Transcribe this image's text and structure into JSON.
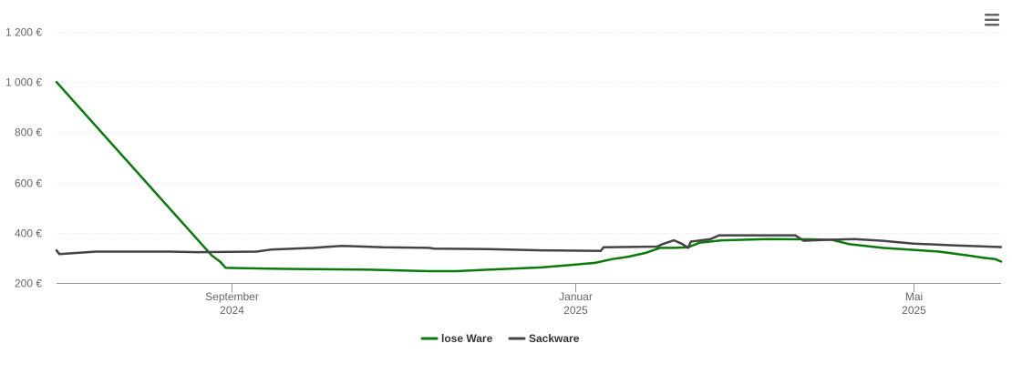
{
  "menu": {
    "icon": "hamburger-menu-icon"
  },
  "chart_data": {
    "type": "line",
    "title": "",
    "xlabel": "",
    "ylabel": "",
    "ylim": [
      200,
      1200
    ],
    "yticks": [
      200,
      400,
      600,
      800,
      1000,
      1200
    ],
    "ytick_labels": [
      "200 €",
      "400 €",
      "600 €",
      "800 €",
      "1 000 €",
      "1 200 €"
    ],
    "x_range": [
      "2024-07-01",
      "2025-06-01"
    ],
    "xticks": [
      {
        "date": "2024-09-01",
        "label_month": "September",
        "label_year": "2024"
      },
      {
        "date": "2025-01-01",
        "label_month": "Januar",
        "label_year": "2025"
      },
      {
        "date": "2025-05-01",
        "label_month": "Mai",
        "label_year": "2025"
      }
    ],
    "grid": true,
    "legend": "bottom-center",
    "series": [
      {
        "name": "lose Ware",
        "color": "#0a7a0a",
        "points": [
          [
            "2024-07-01",
            1000
          ],
          [
            "2024-08-25",
            310
          ],
          [
            "2024-08-28",
            285
          ],
          [
            "2024-08-30",
            260
          ],
          [
            "2024-09-20",
            256
          ],
          [
            "2024-10-20",
            253
          ],
          [
            "2024-11-10",
            247
          ],
          [
            "2024-11-20",
            247
          ],
          [
            "2024-12-01",
            253
          ],
          [
            "2024-12-20",
            262
          ],
          [
            "2025-01-08",
            280
          ],
          [
            "2025-01-14",
            295
          ],
          [
            "2025-01-20",
            305
          ],
          [
            "2025-01-26",
            320
          ],
          [
            "2025-01-31",
            340
          ],
          [
            "2025-02-05",
            340
          ],
          [
            "2025-02-10",
            342
          ],
          [
            "2025-02-14",
            360
          ],
          [
            "2025-02-22",
            370
          ],
          [
            "2025-03-10",
            375
          ],
          [
            "2025-03-25",
            374
          ],
          [
            "2025-04-02",
            372
          ],
          [
            "2025-04-08",
            355
          ],
          [
            "2025-04-20",
            340
          ],
          [
            "2025-05-10",
            325
          ],
          [
            "2025-05-20",
            310
          ],
          [
            "2025-05-26",
            300
          ],
          [
            "2025-05-30",
            295
          ],
          [
            "2025-06-01",
            285
          ]
        ]
      },
      {
        "name": "Sackware",
        "color": "#434348",
        "points": [
          [
            "2024-07-01",
            330
          ],
          [
            "2024-07-02",
            315
          ],
          [
            "2024-07-15",
            325
          ],
          [
            "2024-08-10",
            325
          ],
          [
            "2024-08-20",
            323
          ],
          [
            "2024-09-10",
            325
          ],
          [
            "2024-09-15",
            333
          ],
          [
            "2024-09-30",
            340
          ],
          [
            "2024-10-10",
            348
          ],
          [
            "2024-10-25",
            342
          ],
          [
            "2024-11-10",
            340
          ],
          [
            "2024-11-12",
            337
          ],
          [
            "2024-12-01",
            335
          ],
          [
            "2024-12-20",
            330
          ],
          [
            "2025-01-10",
            328
          ],
          [
            "2025-01-11",
            342
          ],
          [
            "2025-01-30",
            345
          ],
          [
            "2025-02-01",
            355
          ],
          [
            "2025-02-05",
            370
          ],
          [
            "2025-02-08",
            355
          ],
          [
            "2025-02-10",
            340
          ],
          [
            "2025-02-11",
            365
          ],
          [
            "2025-02-18",
            375
          ],
          [
            "2025-02-21",
            390
          ],
          [
            "2025-03-20",
            390
          ],
          [
            "2025-03-23",
            368
          ],
          [
            "2025-04-01",
            372
          ],
          [
            "2025-04-10",
            375
          ],
          [
            "2025-04-20",
            368
          ],
          [
            "2025-05-01",
            357
          ],
          [
            "2025-05-15",
            350
          ],
          [
            "2025-06-01",
            343
          ]
        ]
      }
    ]
  }
}
